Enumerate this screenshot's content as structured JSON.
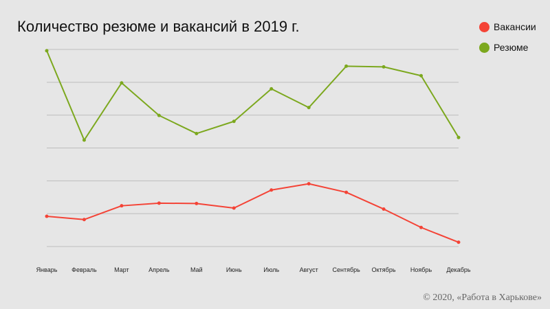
{
  "chart_data": {
    "type": "line",
    "title": "Количество резюме и вакансий в 2019 г.",
    "categories": [
      "Январь",
      "Февраль",
      "Март",
      "Апрель",
      "Май",
      "Июнь",
      "Июль",
      "Август",
      "Сентябрь",
      "Октябрь",
      "Ноябрь",
      "Декабрь"
    ],
    "series": [
      {
        "name": "Вакансии",
        "color": "#f44336",
        "values": [
          0.92,
          0.82,
          1.24,
          1.32,
          1.31,
          1.17,
          1.72,
          1.91,
          1.65,
          1.14,
          0.58,
          0.13
        ]
      },
      {
        "name": "Резюме",
        "color": "#7ca81e",
        "values": [
          5.96,
          3.24,
          4.98,
          3.99,
          3.44,
          3.81,
          4.8,
          4.23,
          5.49,
          5.47,
          5.2,
          3.32
        ]
      }
    ],
    "ylim": [
      0,
      6
    ],
    "grid": true,
    "y_tick_labels": false,
    "legend_position": "top-right"
  },
  "footer": {
    "copyright": "© 2020, «Работа в Харькове»"
  }
}
